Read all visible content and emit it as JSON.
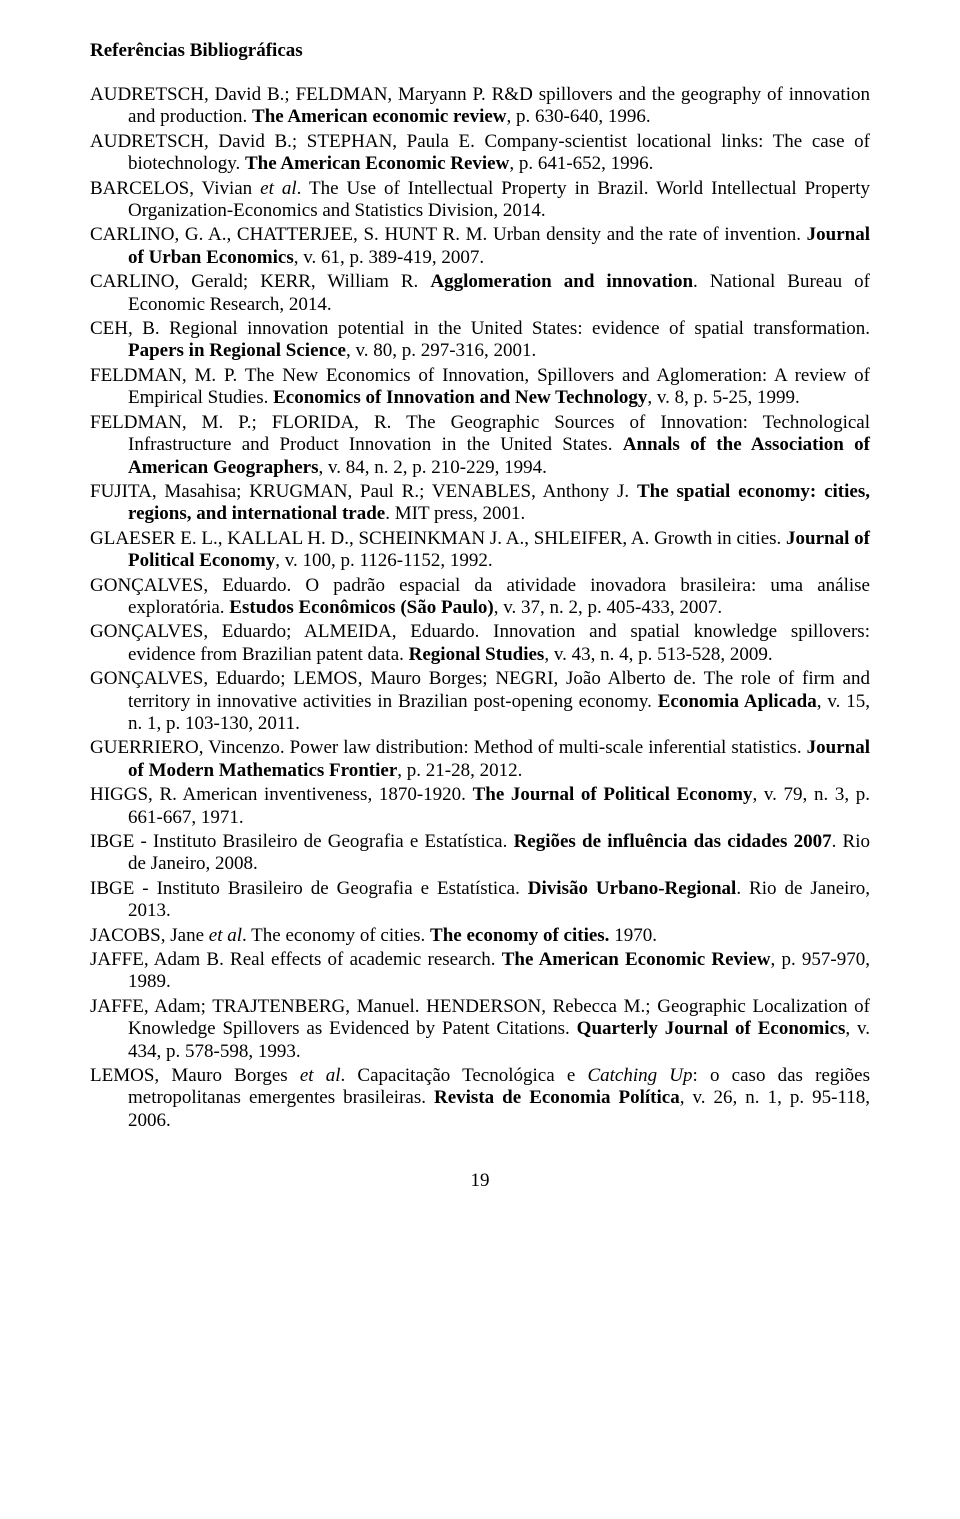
{
  "heading": "Referências Bibliográficas",
  "page_number": "19",
  "references": [
    {
      "segments": [
        {
          "t": "AUDRETSCH, David B.; FELDMAN, Maryann P. R&D spillovers and the geography of innovation and production. "
        },
        {
          "t": "The American economic review",
          "b": true
        },
        {
          "t": ", p. 630-640, 1996."
        }
      ]
    },
    {
      "segments": [
        {
          "t": "AUDRETSCH, David B.; STEPHAN, Paula E. Company-scientist locational links: The case of biotechnology. "
        },
        {
          "t": "The American Economic Review",
          "b": true
        },
        {
          "t": ", p. 641-652, 1996."
        }
      ]
    },
    {
      "segments": [
        {
          "t": "BARCELOS, Vivian "
        },
        {
          "t": "et al",
          "i": true
        },
        {
          "t": ". The Use of Intellectual Property in Brazil. World Intellectual Property Organization-Economics and Statistics Division, 2014."
        }
      ]
    },
    {
      "segments": [
        {
          "t": "CARLINO, G. A., CHATTERJEE, S. HUNT R. M. Urban density and the rate of invention. "
        },
        {
          "t": "Journal of Urban Economics",
          "b": true
        },
        {
          "t": ", v. 61, p. 389-419, 2007."
        }
      ]
    },
    {
      "segments": [
        {
          "t": "CARLINO, Gerald; KERR, William R. "
        },
        {
          "t": "Agglomeration and innovation",
          "b": true
        },
        {
          "t": ". National Bureau of Economic Research, 2014."
        }
      ]
    },
    {
      "segments": [
        {
          "t": "CEH, B. Regional innovation potential in the United States: evidence of spatial transformation. "
        },
        {
          "t": "Papers in Regional Science",
          "b": true
        },
        {
          "t": ", v. 80, p. 297-316, 2001."
        }
      ]
    },
    {
      "segments": [
        {
          "t": "FELDMAN, M. P. The New Economics of Innovation, Spillovers and Aglomeration: A review of Empirical Studies. "
        },
        {
          "t": "Economics of Innovation and New Technology",
          "b": true
        },
        {
          "t": ", v. 8, p. 5-25, 1999."
        }
      ]
    },
    {
      "segments": [
        {
          "t": "FELDMAN, M. P.; FLORIDA, R. The Geographic Sources of Innovation: Technological Infrastructure and Product Innovation in the United States. "
        },
        {
          "t": "Annals of the Association of American Geographers",
          "b": true
        },
        {
          "t": ", v. 84, n. 2, p. 210-229, 1994."
        }
      ]
    },
    {
      "segments": [
        {
          "t": "FUJITA, Masahisa; KRUGMAN, Paul R.; VENABLES, Anthony J. "
        },
        {
          "t": "The spatial economy: cities, regions, and international trade",
          "b": true
        },
        {
          "t": ". MIT press, 2001."
        }
      ]
    },
    {
      "segments": [
        {
          "t": "GLAESER E. L., KALLAL H. D., SCHEINKMAN J. A., SHLEIFER, A. Growth in cities. "
        },
        {
          "t": "Journal of Political Economy",
          "b": true
        },
        {
          "t": ", v.  100, p. 1126-1152, 1992."
        }
      ]
    },
    {
      "segments": [
        {
          "t": "GONÇALVES, Eduardo. O padrão espacial da atividade inovadora brasileira: uma análise exploratória. "
        },
        {
          "t": "Estudos Econômicos (São Paulo)",
          "b": true
        },
        {
          "t": ", v. 37, n. 2, p. 405-433, 2007."
        }
      ]
    },
    {
      "segments": [
        {
          "t": "GONÇALVES, Eduardo; ALMEIDA, Eduardo. Innovation and spatial knowledge spillovers: evidence from Brazilian patent data. "
        },
        {
          "t": "Regional Studies",
          "b": true
        },
        {
          "t": ", v. 43, n. 4, p. 513-528, 2009."
        }
      ]
    },
    {
      "segments": [
        {
          "t": "GONÇALVES, Eduardo; LEMOS, Mauro Borges; NEGRI, João Alberto de. The role of firm and territory in innovative activities in Brazilian post-opening economy. "
        },
        {
          "t": "Economia Aplicada",
          "b": true
        },
        {
          "t": ", v. 15, n. 1, p. 103-130, 2011."
        }
      ]
    },
    {
      "segments": [
        {
          "t": "GUERRIERO, Vincenzo. Power law distribution: Method of multi-scale inferential statistics. "
        },
        {
          "t": "Journal of Modern Mathematics Frontier",
          "b": true
        },
        {
          "t": ", p. 21-28, 2012."
        }
      ]
    },
    {
      "segments": [
        {
          "t": "HIGGS, R. American inventiveness, 1870-1920. "
        },
        {
          "t": "The Journal of Political Economy",
          "b": true
        },
        {
          "t": ", v. 79, n. 3, p. 661-667, 1971."
        }
      ]
    },
    {
      "segments": [
        {
          "t": "IBGE - Instituto Brasileiro de Geografia e Estatística. "
        },
        {
          "t": "Regiões de influência das cidades 2007",
          "b": true
        },
        {
          "t": ". Rio de Janeiro, 2008."
        }
      ]
    },
    {
      "segments": [
        {
          "t": "IBGE - Instituto Brasileiro de Geografia e Estatística. "
        },
        {
          "t": "Divisão Urbano-Regional",
          "b": true
        },
        {
          "t": ". Rio de Janeiro, 2013."
        }
      ]
    },
    {
      "segments": [
        {
          "t": "JACOBS, Jane "
        },
        {
          "t": "et al",
          "i": true
        },
        {
          "t": ". The economy of cities. "
        },
        {
          "t": "The economy of cities.",
          "b": true
        },
        {
          "t": " 1970."
        }
      ]
    },
    {
      "segments": [
        {
          "t": "JAFFE, Adam B. Real effects of academic research. "
        },
        {
          "t": "The American Economic Review",
          "b": true
        },
        {
          "t": ", p. 957-970, 1989."
        }
      ]
    },
    {
      "segments": [
        {
          "t": "JAFFE, Adam; TRAJTENBERG, Manuel. HENDERSON, Rebecca M.; Geographic Localization of Knowledge Spillovers as Evidenced by Patent Citations. "
        },
        {
          "t": "Quarterly Journal of Economics",
          "b": true
        },
        {
          "t": ", v. 434, p. 578-598, 1993."
        }
      ]
    },
    {
      "segments": [
        {
          "t": "LEMOS, Mauro Borges "
        },
        {
          "t": "et al",
          "i": true
        },
        {
          "t": ". Capacitação Tecnológica e "
        },
        {
          "t": "Catching Up",
          "i": true
        },
        {
          "t": ": o caso das regiões metropolitanas emergentes brasileiras. "
        },
        {
          "t": "Revista de Economia Política",
          "b": true
        },
        {
          "t": ", v. 26, n. 1, p. 95-118, 2006."
        }
      ]
    }
  ]
}
